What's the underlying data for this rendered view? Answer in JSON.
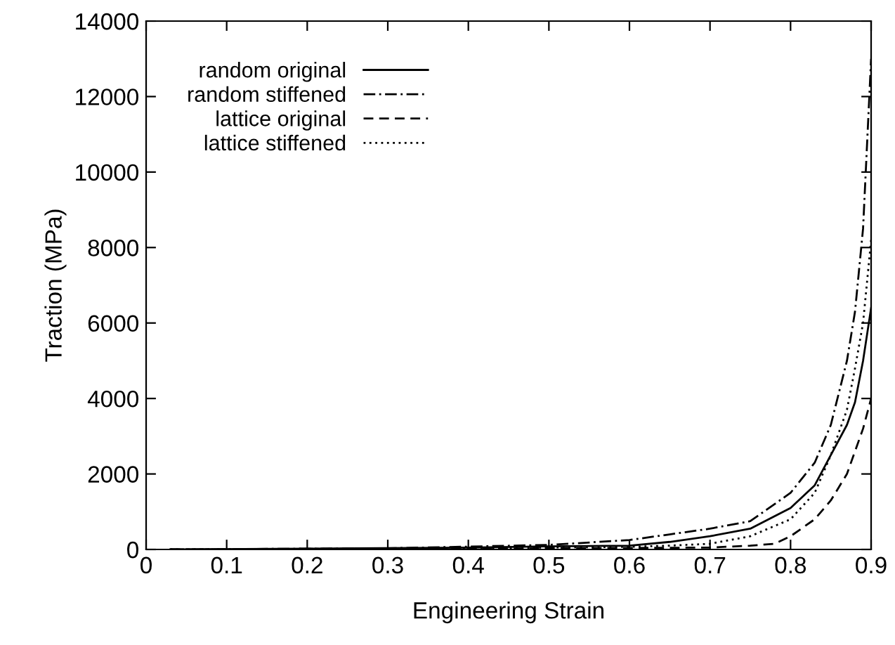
{
  "chart_data": {
    "type": "line",
    "xlabel": "Engineering Strain",
    "ylabel": "Traction (MPa)",
    "xlim": [
      0,
      0.9
    ],
    "ylim": [
      0,
      14000
    ],
    "xticks": [
      0,
      0.1,
      0.2,
      0.3,
      0.4,
      0.5,
      0.6,
      0.7,
      0.8,
      0.9
    ],
    "yticks": [
      0,
      2000,
      4000,
      6000,
      8000,
      10000,
      12000,
      14000
    ],
    "grid": false,
    "legend": "top left",
    "marker": "none",
    "series": [
      {
        "name": "random original",
        "color": "#000000",
        "line_style": "solid",
        "x": [
          0.03,
          0.2,
          0.4,
          0.5,
          0.6,
          0.65,
          0.7,
          0.75,
          0.8,
          0.83,
          0.85,
          0.87,
          0.88,
          0.89,
          0.9
        ],
        "values": [
          0,
          20,
          50,
          80,
          100,
          200,
          350,
          550,
          1100,
          1700,
          2500,
          3300,
          3900,
          5000,
          6400
        ]
      },
      {
        "name": "random stiffened",
        "color": "#000000",
        "line_style": "dashdot",
        "x": [
          0.03,
          0.2,
          0.3,
          0.5,
          0.6,
          0.65,
          0.7,
          0.75,
          0.8,
          0.83,
          0.85,
          0.87,
          0.88,
          0.89,
          0.9
        ],
        "values": [
          0,
          20,
          30,
          120,
          250,
          400,
          550,
          750,
          1500,
          2300,
          3300,
          5000,
          6300,
          8500,
          13000
        ]
      },
      {
        "name": "lattice original",
        "color": "#000000",
        "line_style": "dashed",
        "x": [
          0.03,
          0.2,
          0.4,
          0.5,
          0.6,
          0.7,
          0.75,
          0.78,
          0.8,
          0.83,
          0.85,
          0.87,
          0.88,
          0.89,
          0.9
        ],
        "values": [
          0,
          10,
          20,
          30,
          40,
          50,
          100,
          150,
          350,
          800,
          1300,
          2000,
          2600,
          3200,
          4000
        ]
      },
      {
        "name": "lattice stiffened",
        "color": "#000000",
        "line_style": "dotted",
        "x": [
          0.03,
          0.2,
          0.4,
          0.5,
          0.6,
          0.65,
          0.7,
          0.75,
          0.8,
          0.83,
          0.85,
          0.87,
          0.88,
          0.89,
          0.9
        ],
        "values": [
          0,
          15,
          30,
          50,
          70,
          100,
          150,
          350,
          800,
          1500,
          2500,
          3700,
          4800,
          6000,
          8200
        ]
      }
    ]
  }
}
